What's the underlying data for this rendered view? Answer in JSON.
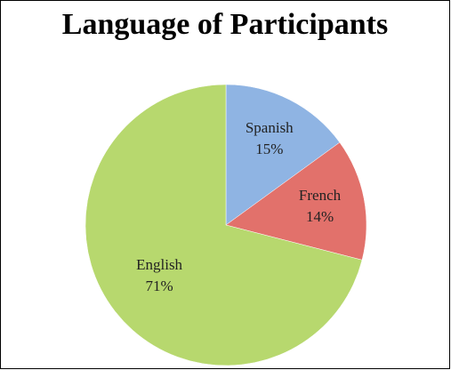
{
  "chart_data": {
    "type": "pie",
    "title": "Language of Participants",
    "categories": [
      "Spanish",
      "French",
      "English"
    ],
    "values": [
      15,
      14,
      71
    ],
    "value_labels": [
      "15%",
      "14%",
      "71%"
    ],
    "colors": [
      "#8fb4e3",
      "#e2716b",
      "#b7d86e"
    ]
  }
}
